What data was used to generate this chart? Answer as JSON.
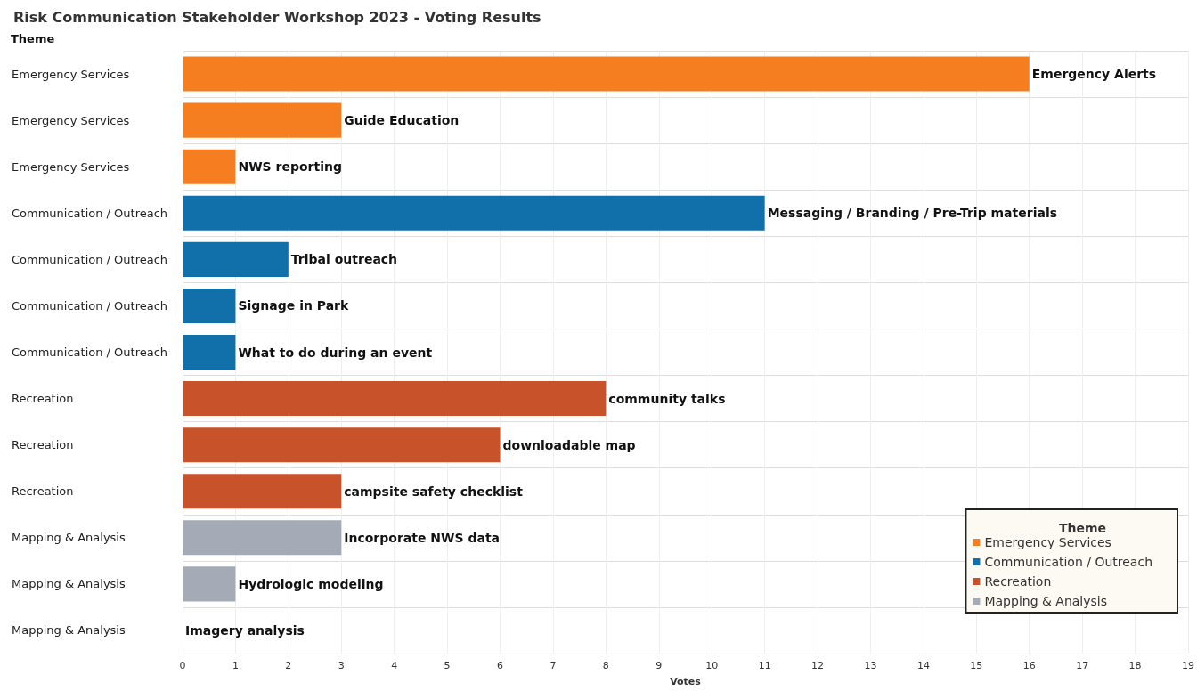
{
  "chart_data": {
    "type": "bar",
    "orientation": "horizontal",
    "stacked": true,
    "title": "Risk Communication Stakeholder Workshop 2023 - Voting Results",
    "ylabel": "Theme",
    "xlabel": "Votes",
    "legend_title": "Theme",
    "legend": "bottom right",
    "grid": true,
    "categories": [
      "Emergency Services",
      "Emergency Services",
      "Emergency Services",
      "Communication / Outreach",
      "Communication / Outreach",
      "Communication / Outreach",
      "Communication / Outreach",
      "Recreation",
      "Recreation",
      "Recreation",
      "Mapping & Analysis",
      "Mapping & Analysis",
      "Mapping & Analysis"
    ],
    "xlim": [
      0,
      19
    ],
    "xticks": [
      0,
      1,
      2,
      3,
      4,
      5,
      6,
      7,
      8,
      9,
      10,
      11,
      12,
      13,
      14,
      15,
      16,
      17,
      18,
      19
    ],
    "series": [
      {
        "name": "Emergency Services",
        "color": "#f57f20",
        "values": [
          16,
          3,
          1,
          null,
          null,
          null,
          null,
          null,
          null,
          null,
          null,
          null,
          null
        ],
        "value_labels": [
          "Emergency Alerts",
          "Guide Education",
          "NWS reporting",
          null,
          null,
          null,
          null,
          null,
          null,
          null,
          null,
          null,
          null
        ]
      },
      {
        "name": "Communication / Outreach",
        "color": "#1170aa",
        "values": [
          null,
          null,
          null,
          11,
          2,
          1,
          1,
          null,
          null,
          null,
          null,
          null,
          null
        ],
        "value_labels": [
          null,
          null,
          null,
          "Messaging / Branding / Pre-Trip materials",
          "Tribal outreach",
          "Signage in Park",
          "What to do during an event",
          null,
          null,
          null,
          null,
          null,
          null
        ]
      },
      {
        "name": "Recreation",
        "color": "#c8522a",
        "values": [
          null,
          null,
          null,
          null,
          null,
          null,
          null,
          8,
          6,
          3,
          null,
          null,
          null
        ],
        "value_labels": [
          null,
          null,
          null,
          null,
          null,
          null,
          null,
          "community talks",
          "downloadable map",
          "campsite safety checklist",
          null,
          null,
          null
        ]
      },
      {
        "name": "Mapping & Analysis",
        "color": "#a5abb6",
        "values": [
          null,
          null,
          null,
          null,
          null,
          null,
          null,
          null,
          null,
          null,
          3,
          1,
          0
        ],
        "value_labels": [
          null,
          null,
          null,
          null,
          null,
          null,
          null,
          null,
          null,
          null,
          "Incorporate NWS data",
          "Hydrologic modeling",
          "Imagery analysis"
        ]
      }
    ]
  }
}
